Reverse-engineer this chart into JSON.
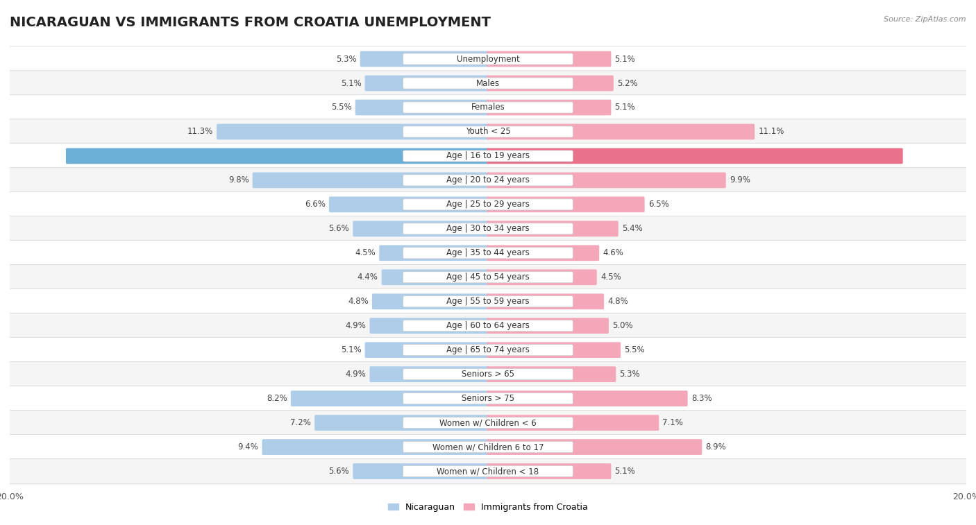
{
  "title": "NICARAGUAN VS IMMIGRANTS FROM CROATIA UNEMPLOYMENT",
  "source": "Source: ZipAtlas.com",
  "categories": [
    "Unemployment",
    "Males",
    "Females",
    "Youth < 25",
    "Age | 16 to 19 years",
    "Age | 20 to 24 years",
    "Age | 25 to 29 years",
    "Age | 30 to 34 years",
    "Age | 35 to 44 years",
    "Age | 45 to 54 years",
    "Age | 55 to 59 years",
    "Age | 60 to 64 years",
    "Age | 65 to 74 years",
    "Seniors > 65",
    "Seniors > 75",
    "Women w/ Children < 6",
    "Women w/ Children 6 to 17",
    "Women w/ Children < 18"
  ],
  "nicaraguan": [
    5.3,
    5.1,
    5.5,
    11.3,
    17.6,
    9.8,
    6.6,
    5.6,
    4.5,
    4.4,
    4.8,
    4.9,
    5.1,
    4.9,
    8.2,
    7.2,
    9.4,
    5.6
  ],
  "croatia": [
    5.1,
    5.2,
    5.1,
    11.1,
    17.3,
    9.9,
    6.5,
    5.4,
    4.6,
    4.5,
    4.8,
    5.0,
    5.5,
    5.3,
    8.3,
    7.1,
    8.9,
    5.1
  ],
  "blue_color": "#aecde8",
  "pink_color": "#f4a7b9",
  "highlight_blue": "#6baed6",
  "highlight_pink": "#e8728a",
  "bg_color": "#ffffff",
  "row_bg_odd": "#f5f5f5",
  "row_bg_even": "#ffffff",
  "divider_color": "#d0d0d0",
  "xlim": 20.0,
  "bar_height": 0.55,
  "title_fontsize": 14,
  "label_fontsize": 8.5,
  "tick_fontsize": 9,
  "value_fontsize": 8.5
}
